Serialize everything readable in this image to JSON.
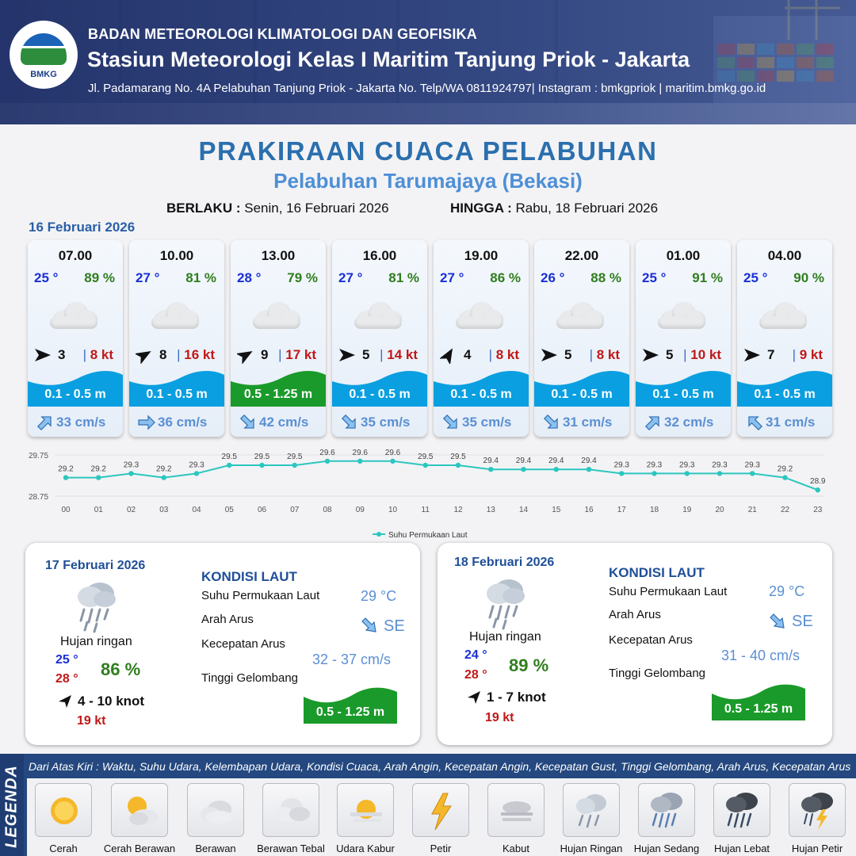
{
  "header": {
    "logo_text": "BMKG",
    "agency": "BADAN METEOROLOGI KLIMATOLOGI DAN GEOFISIKA",
    "station": "Stasiun Meteorologi Kelas I Maritim Tanjung Priok - Jakarta",
    "address": "Jl. Padamarang No. 4A Pelabuhan Tanjung Priok - Jakarta No. Telp/WA 0811924797| Instagram : bmkgpriok | maritim.bmkg.go.id"
  },
  "title": "PRAKIRAAN CUACA PELABUHAN",
  "subtitle": "Pelabuhan Tarumajaya (Bekasi)",
  "validity": {
    "from_label": "BERLAKU :",
    "from_value": "Senin, 16 Februari 2026",
    "to_label": "HINGGA :",
    "to_value": "Rabu, 18 Februari 2026"
  },
  "day1": {
    "date": "16 Februari 2026",
    "cards": [
      {
        "time": "07.00",
        "temp": "25 °",
        "hum": "89 %",
        "wind": "3",
        "gust": "8 kt",
        "wave": "0.1 - 0.5 m",
        "wave_color": "#0a9fe0",
        "current": "33 cm/s",
        "wind_dir_deg": 90,
        "cur_dir_deg": 45
      },
      {
        "time": "10.00",
        "temp": "27 °",
        "hum": "81 %",
        "wind": "8",
        "gust": "16 kt",
        "wave": "0.1 - 0.5 m",
        "wave_color": "#0a9fe0",
        "current": "36 cm/s",
        "wind_dir_deg": 60,
        "cur_dir_deg": 90
      },
      {
        "time": "13.00",
        "temp": "28 °",
        "hum": "79 %",
        "wind": "9",
        "gust": "17 kt",
        "wave": "0.5 - 1.25 m",
        "wave_color": "#1a9a2a",
        "current": "42 cm/s",
        "wind_dir_deg": 60,
        "cur_dir_deg": 135
      },
      {
        "time": "16.00",
        "temp": "27 °",
        "hum": "81 %",
        "wind": "5",
        "gust": "14 kt",
        "wave": "0.1 - 0.5 m",
        "wave_color": "#0a9fe0",
        "current": "35 cm/s",
        "wind_dir_deg": 90,
        "cur_dir_deg": 135
      },
      {
        "time": "19.00",
        "temp": "27 °",
        "hum": "86 %",
        "wind": "4",
        "gust": "8 kt",
        "wave": "0.1 - 0.5 m",
        "wave_color": "#0a9fe0",
        "current": "35 cm/s",
        "wind_dir_deg": 30,
        "cur_dir_deg": 135
      },
      {
        "time": "22.00",
        "temp": "26 °",
        "hum": "88 %",
        "wind": "5",
        "gust": "8 kt",
        "wave": "0.1 - 0.5 m",
        "wave_color": "#0a9fe0",
        "current": "31 cm/s",
        "wind_dir_deg": 90,
        "cur_dir_deg": 135
      },
      {
        "time": "01.00",
        "temp": "25 °",
        "hum": "91 %",
        "wind": "5",
        "gust": "10 kt",
        "wave": "0.1 - 0.5 m",
        "wave_color": "#0a9fe0",
        "current": "32 cm/s",
        "wind_dir_deg": 90,
        "cur_dir_deg": 45
      },
      {
        "time": "04.00",
        "temp": "25 °",
        "hum": "90 %",
        "wind": "7",
        "gust": "9 kt",
        "wave": "0.1 - 0.5 m",
        "wave_color": "#0a9fe0",
        "current": "31 cm/s",
        "wind_dir_deg": 90,
        "cur_dir_deg": 315
      }
    ]
  },
  "chart_data": {
    "type": "line",
    "title": "",
    "x": [
      "00",
      "01",
      "02",
      "03",
      "04",
      "05",
      "06",
      "07",
      "08",
      "09",
      "10",
      "11",
      "12",
      "13",
      "14",
      "15",
      "16",
      "17",
      "18",
      "19",
      "20",
      "21",
      "22",
      "23"
    ],
    "series": [
      {
        "name": "Suhu Permukaan Laut",
        "color": "#2cc6c0",
        "values": [
          29.2,
          29.2,
          29.3,
          29.2,
          29.3,
          29.5,
          29.5,
          29.5,
          29.6,
          29.6,
          29.6,
          29.5,
          29.5,
          29.4,
          29.4,
          29.4,
          29.4,
          29.3,
          29.3,
          29.3,
          29.3,
          29.3,
          29.2,
          28.9
        ],
        "labels": [
          "29.2",
          "29.2",
          "29.3",
          "29.2",
          "29.3",
          "29.5",
          "29.5",
          "29.5",
          "29.6",
          "29.6",
          "29.6",
          "29.5",
          "29.5",
          "29.4",
          "29.4",
          "29.4",
          "29.4",
          "29.3",
          "29.3",
          "29.3",
          "29.3",
          "29.3",
          "29.2",
          "28.9"
        ]
      }
    ],
    "ylim": [
      28.75,
      29.75
    ],
    "yticks": [
      "29.75",
      "28.75"
    ],
    "legend_position": "bottom"
  },
  "day2": {
    "date": "17 Februari 2026",
    "condition": "Hujan ringan",
    "tmin": "25 °",
    "tmax": "28 °",
    "hum": "86 %",
    "wind": "4  - 10 knot",
    "gust": "19 kt",
    "kondisi_title": "KONDISI LAUT",
    "sst_label": "Suhu Permukaan Laut",
    "sst_value": "29 °C",
    "cur_dir_label": "Arah Arus",
    "cur_dir_value": "SE",
    "cur_speed_label": "Kecepatan Arus",
    "cur_speed_value": "32  - 37 cm/s",
    "wave_label": "Tinggi Gelombang",
    "wave_value": "0.5 - 1.25 m"
  },
  "day3": {
    "date": "18 Februari 2026",
    "condition": "Hujan ringan",
    "tmin": "24 °",
    "tmax": "28 °",
    "hum": "89 %",
    "wind": "1  - 7 knot",
    "gust": "19 kt",
    "kondisi_title": "KONDISI LAUT",
    "sst_label": "Suhu Permukaan Laut",
    "sst_value": "29 °C",
    "cur_dir_label": "Arah Arus",
    "cur_dir_value": "SE",
    "cur_speed_label": "Kecepatan Arus",
    "cur_speed_value": "31 - 40 cm/s",
    "wave_label": "Tinggi Gelombang",
    "wave_value": "0.5 - 1.25 m"
  },
  "legend": {
    "title": "LEGENDA",
    "description": "Dari Atas Kiri : Waktu, Suhu Udara, Kelembapan Udara, Kondisi Cuaca, Arah Angin, Kecepatan Angin, Kecepatan Gust, Tinggi Gelombang, Arah Arus, Kecepatan Arus",
    "items": [
      {
        "label": "Cerah",
        "icon": "sun-icon"
      },
      {
        "label": "Cerah Berawan",
        "icon": "sun-cloud-icon"
      },
      {
        "label": "Berawan",
        "icon": "cloud-icon"
      },
      {
        "label": "Berawan Tebal",
        "icon": "thick-cloud-icon"
      },
      {
        "label": "Udara Kabur",
        "icon": "haze-icon"
      },
      {
        "label": "Petir",
        "icon": "lightning-icon"
      },
      {
        "label": "Kabut",
        "icon": "fog-icon"
      },
      {
        "label": "Hujan Ringan",
        "icon": "light-rain-icon"
      },
      {
        "label": "Hujan Sedang",
        "icon": "moderate-rain-icon"
      },
      {
        "label": "Hujan Lebat",
        "icon": "heavy-rain-icon"
      },
      {
        "label": "Hujan Petir",
        "icon": "thunderstorm-icon"
      }
    ]
  }
}
